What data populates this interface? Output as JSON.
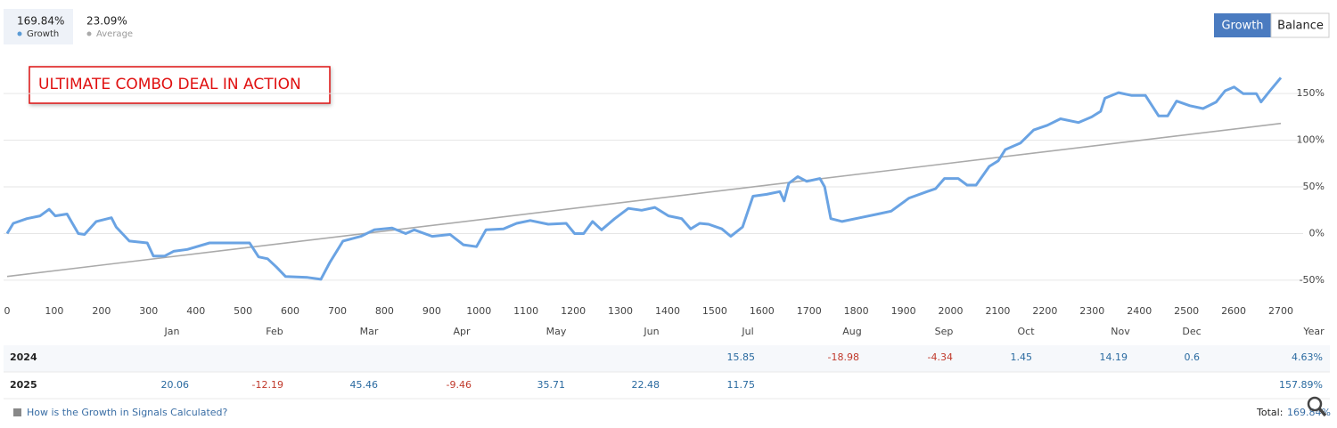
{
  "chart_data": {
    "type": "line",
    "summary": [
      {
        "value": "169.84%",
        "label": "Growth",
        "color": "#5b9bd5"
      },
      {
        "value": "23.09%",
        "label": "Average",
        "color": "#aaaaaa"
      }
    ],
    "tabs": [
      "Growth",
      "Balance"
    ],
    "annotation": "ULTIMATE COMBO DEAL IN ACTION",
    "xlim": [
      0,
      2700
    ],
    "xticks": [
      0,
      100,
      200,
      300,
      400,
      500,
      600,
      700,
      800,
      900,
      1000,
      1100,
      1200,
      1300,
      1400,
      1500,
      1600,
      1700,
      1800,
      1900,
      2000,
      2100,
      2200,
      2300,
      2400,
      2500,
      2600,
      2700
    ],
    "ylim": [
      -72,
      174
    ],
    "yticks": [
      {
        "value": -50,
        "label": "-50%"
      },
      {
        "value": 0,
        "label": "0%"
      },
      {
        "value": 50,
        "label": "50%"
      },
      {
        "value": 100,
        "label": "100%"
      },
      {
        "value": 150,
        "label": "150%"
      }
    ],
    "grid": true,
    "series": [
      {
        "name": "Growth",
        "color": "#6aa3e3",
        "x": [
          0,
          13,
          42,
          70,
          89,
          102,
          127,
          136,
          151,
          164,
          189,
          221,
          231,
          259,
          297,
          310,
          334,
          353,
          382,
          429,
          476,
          514,
          533,
          552,
          571,
          590,
          637,
          665,
          684,
          712,
          750,
          778,
          816,
          845,
          863,
          901,
          939,
          967,
          995,
          1015,
          1052,
          1080,
          1109,
          1147,
          1185,
          1203,
          1222,
          1241,
          1260,
          1288,
          1317,
          1345,
          1373,
          1402,
          1430,
          1449,
          1468,
          1487,
          1515,
          1534,
          1559,
          1581,
          1610,
          1638,
          1647,
          1657,
          1676,
          1695,
          1723,
          1733,
          1746,
          1770,
          1808,
          1846,
          1874,
          1912,
          1950,
          1968,
          1987,
          2016,
          2035,
          2054,
          2082,
          2101,
          2116,
          2148,
          2176,
          2205,
          2233,
          2271,
          2299,
          2318,
          2327,
          2356,
          2384,
          2413,
          2441,
          2460,
          2479,
          2507,
          2535,
          2563,
          2582,
          2601,
          2620,
          2648,
          2658,
          2677,
          2700
        ],
        "values": [
          0,
          11,
          16,
          19,
          26,
          19,
          21,
          13,
          0,
          -1,
          13,
          17,
          7,
          -8,
          -10,
          -24,
          -24,
          -19,
          -17,
          -10,
          -10,
          -10,
          -25,
          -27,
          -36,
          -46,
          -47,
          -49,
          -31,
          -8,
          -3,
          4,
          6,
          0,
          4,
          -3,
          -1,
          -12,
          -14,
          4,
          5,
          11,
          14,
          10,
          11,
          0,
          0,
          13,
          4,
          16,
          27,
          25,
          28,
          19,
          16,
          5,
          11,
          10,
          5,
          -3,
          7,
          40,
          42,
          45,
          35,
          54,
          61,
          56,
          59,
          50,
          16,
          13,
          17,
          21,
          24,
          38,
          45,
          48,
          59,
          59,
          52,
          52,
          72,
          78,
          90,
          97,
          111,
          116,
          123,
          119,
          125,
          131,
          145,
          151,
          148,
          148,
          126,
          126,
          142,
          137,
          134,
          141,
          153,
          157,
          150,
          150,
          141,
          153,
          167
        ]
      },
      {
        "name": "Average",
        "color": "#aaaaaa",
        "x": [
          0,
          2700
        ],
        "values": [
          -46,
          118
        ]
      }
    ]
  },
  "table": {
    "header": [
      "Jan",
      "Feb",
      "Mar",
      "Apr",
      "May",
      "Jun",
      "Jul",
      "Aug",
      "Sep",
      "Oct",
      "Nov",
      "Dec",
      "Year"
    ],
    "rows": [
      {
        "year": "2024",
        "cells": [
          null,
          null,
          null,
          null,
          null,
          null,
          "15.85",
          "-18.98",
          "-4.34",
          "1.45",
          "14.19",
          "0.6",
          "4.63%"
        ]
      },
      {
        "year": "2025",
        "cells": [
          "20.06",
          "-12.19",
          "45.46",
          "-9.46",
          "35.71",
          "22.48",
          "11.75",
          null,
          null,
          null,
          null,
          null,
          "157.89%"
        ]
      }
    ]
  },
  "footer": {
    "link": "How is the Growth in Signals Calculated?",
    "total_label": "Total:",
    "total": "169.84%"
  }
}
